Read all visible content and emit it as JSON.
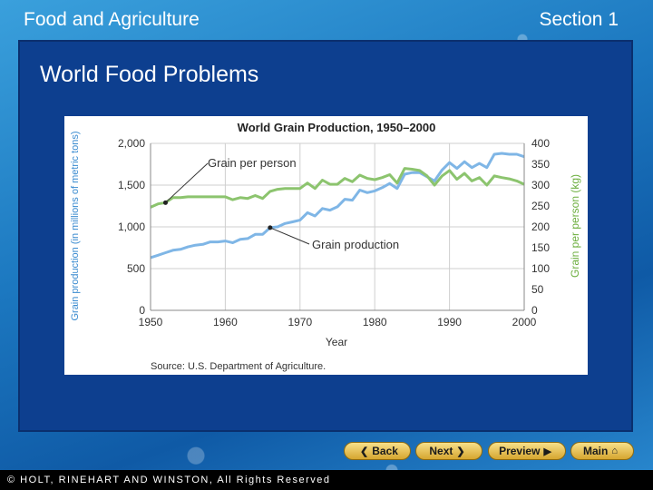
{
  "header": {
    "left": "Food and Agriculture",
    "right": "Section 1"
  },
  "slide": {
    "title": "World Food Problems"
  },
  "nav": {
    "back": "Back",
    "next": "Next",
    "preview": "Preview",
    "main": "Main"
  },
  "footer": {
    "text": "© HOLT, RINEHART AND WINSTON, All Rights Reserved"
  },
  "colors": {
    "grain_production": "#7fb6e6",
    "grain_per_person": "#8cc46e"
  },
  "chart_data": {
    "type": "line",
    "title": "World Grain Production, 1950–2000",
    "xlabel": "Year",
    "ylabel": "Grain production (in millions of metric tons)",
    "y2label": "Grain per person (kg)",
    "xlim": [
      1950,
      2000
    ],
    "ylim": [
      0,
      2000
    ],
    "y2lim": [
      0,
      400
    ],
    "x_ticks": [
      "1950",
      "1960",
      "1970",
      "1980",
      "1990",
      "2000"
    ],
    "y_ticks": [
      "0",
      "500",
      "1,000",
      "1,500",
      "2,000"
    ],
    "y2_ticks": [
      "0",
      "50",
      "100",
      "150",
      "200",
      "250",
      "300",
      "350",
      "400"
    ],
    "source": "Source: U.S. Department of Agriculture.",
    "annotations": [
      {
        "text": "Grain per person",
        "x": 1952,
        "y": 1290
      },
      {
        "text": "Grain production",
        "x": 1966,
        "y": 970
      }
    ],
    "series": [
      {
        "name": "Grain production",
        "axis": "left",
        "x": [
          1950,
          1951,
          1952,
          1953,
          1954,
          1955,
          1956,
          1957,
          1958,
          1959,
          1960,
          1961,
          1962,
          1963,
          1964,
          1965,
          1966,
          1967,
          1968,
          1969,
          1970,
          1971,
          1972,
          1973,
          1974,
          1975,
          1976,
          1977,
          1978,
          1979,
          1980,
          1981,
          1982,
          1983,
          1984,
          1985,
          1986,
          1987,
          1988,
          1989,
          1990,
          1991,
          1992,
          1993,
          1994,
          1995,
          1996,
          1997,
          1998,
          1999,
          2000
        ],
        "values": [
          631,
          660,
          690,
          720,
          730,
          760,
          780,
          790,
          820,
          820,
          830,
          810,
          850,
          860,
          910,
          910,
          990,
          1000,
          1040,
          1060,
          1080,
          1170,
          1130,
          1220,
          1200,
          1240,
          1330,
          1320,
          1440,
          1410,
          1430,
          1470,
          1520,
          1460,
          1630,
          1650,
          1650,
          1600,
          1550,
          1680,
          1770,
          1700,
          1780,
          1710,
          1760,
          1710,
          1870,
          1880,
          1870,
          1870,
          1840
        ]
      },
      {
        "name": "Grain per person",
        "axis": "right",
        "values_note": "kg per person",
        "x": [
          1950,
          1951,
          1952,
          1953,
          1954,
          1955,
          1956,
          1957,
          1958,
          1959,
          1960,
          1961,
          1962,
          1963,
          1964,
          1965,
          1966,
          1967,
          1968,
          1969,
          1970,
          1971,
          1972,
          1973,
          1974,
          1975,
          1976,
          1977,
          1978,
          1979,
          1980,
          1981,
          1982,
          1983,
          1984,
          1985,
          1986,
          1987,
          1988,
          1989,
          1990,
          1991,
          1992,
          1993,
          1994,
          1995,
          1996,
          1997,
          1998,
          1999,
          2000
        ],
        "values": [
          247,
          255,
          258,
          270,
          270,
          272,
          272,
          272,
          272,
          272,
          272,
          265,
          270,
          268,
          275,
          268,
          285,
          290,
          292,
          292,
          292,
          305,
          292,
          312,
          302,
          302,
          316,
          308,
          324,
          316,
          313,
          318,
          325,
          305,
          340,
          338,
          335,
          322,
          300,
          322,
          335,
          314,
          328,
          310,
          318,
          300,
          322,
          318,
          315,
          310,
          302
        ]
      }
    ]
  }
}
